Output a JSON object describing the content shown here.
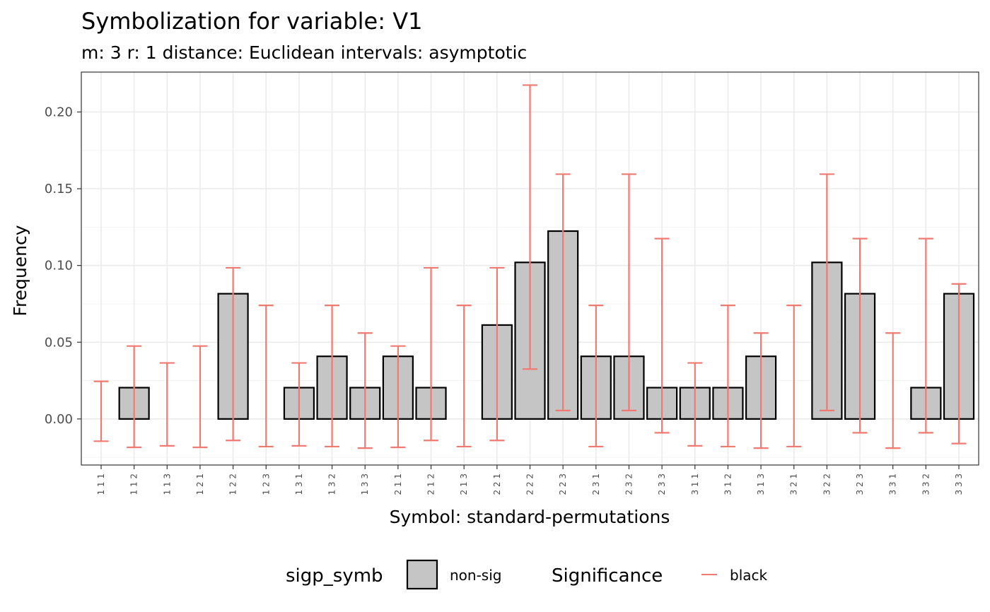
{
  "chart_data": {
    "type": "bar",
    "title": "Symbolization for variable: V1",
    "subtitle": "m: 3  r:  1  distance:  Euclidean  intervals:  asymptotic",
    "xlabel": "Symbol: standard-permutations",
    "ylabel": "Frequency",
    "ylim": [
      -0.03,
      0.226
    ],
    "yticks": [
      0.0,
      0.05,
      0.1,
      0.15,
      0.2
    ],
    "ytick_labels": [
      "0.00",
      "0.05",
      "0.10",
      "0.15",
      "0.20"
    ],
    "grid": true,
    "categories": [
      "1 1 1",
      "1 1 2",
      "1 1 3",
      "1 2 1",
      "1 2 2",
      "1 2 3",
      "1 3 1",
      "1 3 2",
      "1 3 3",
      "2 1 1",
      "2 1 2",
      "2 1 3",
      "2 2 1",
      "2 2 2",
      "2 2 3",
      "2 3 1",
      "2 3 2",
      "2 3 3",
      "3 1 1",
      "3 1 2",
      "3 1 3",
      "3 2 1",
      "3 2 2",
      "3 2 3",
      "3 3 1",
      "3 3 2",
      "3 3 3"
    ],
    "values": [
      0,
      0.0204,
      0,
      0,
      0.0816,
      0,
      0.0204,
      0.0408,
      0.0204,
      0.0408,
      0.0204,
      0,
      0.0612,
      0.102,
      0.1224,
      0.0408,
      0.0408,
      0.0204,
      0.0204,
      0.0204,
      0.0408,
      0,
      0.102,
      0.0816,
      0,
      0.0204,
      0.0816
    ],
    "error_lower": [
      -0.0145,
      -0.0185,
      -0.0175,
      -0.0185,
      -0.014,
      -0.018,
      -0.0175,
      -0.018,
      -0.019,
      -0.0185,
      -0.014,
      -0.018,
      -0.014,
      0.0325,
      0.0055,
      -0.018,
      0.0055,
      -0.009,
      -0.0175,
      -0.018,
      -0.019,
      -0.018,
      0.0055,
      -0.009,
      -0.019,
      -0.009,
      -0.016
    ],
    "error_upper": [
      0.0245,
      0.0475,
      0.0365,
      0.0475,
      0.0985,
      0.074,
      0.0365,
      0.074,
      0.056,
      0.0475,
      0.0985,
      0.074,
      0.0985,
      0.2175,
      0.1595,
      0.074,
      0.1595,
      0.1175,
      0.0365,
      0.074,
      0.056,
      0.074,
      0.1595,
      0.1175,
      0.056,
      0.1175,
      0.088
    ],
    "legend": {
      "position": "bottom",
      "fill_title": "sigp_symb",
      "fill_label": "non-sig",
      "line_title": "Significance",
      "line_label": "black"
    },
    "colors": {
      "bar_fill": "#c5c5c5",
      "bar_stroke": "#000000",
      "errorbar": "#f07a72",
      "grid_major": "#ebebeb",
      "grid_minor": "#f4f4f4",
      "panel_border": "#333333"
    }
  }
}
